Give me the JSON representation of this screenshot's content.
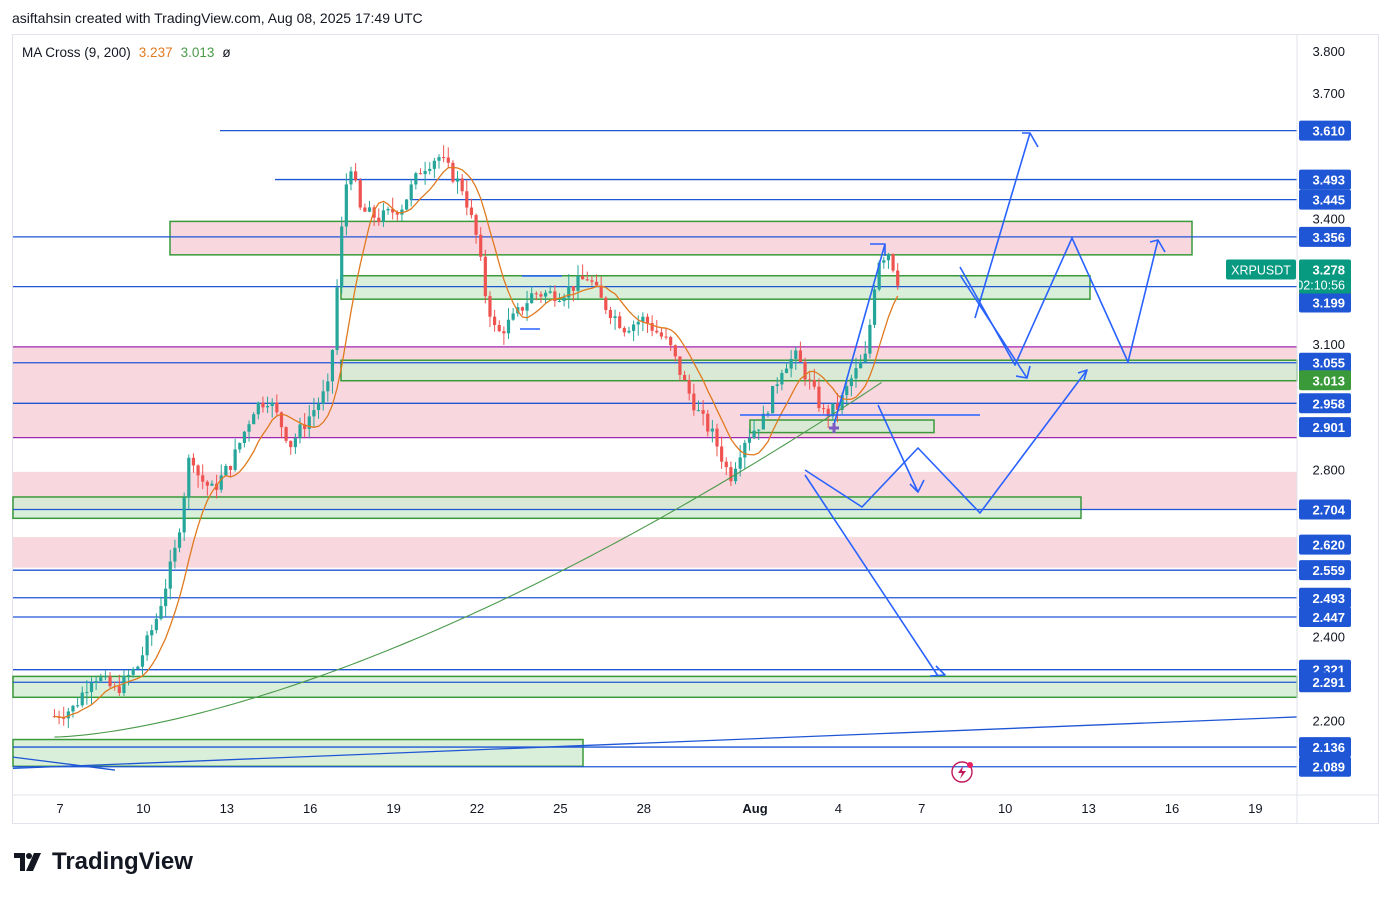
{
  "header": {
    "attribution": "asiftahsin created with TradingView.com, Aug 08, 2025 17:49 UTC"
  },
  "indicator": {
    "name": "MA Cross (9, 200)",
    "ma_fast": "3.237",
    "ma_slow": "3.013",
    "visibility_symbol": "ø",
    "colors": {
      "ma_fast": "#e07a1f",
      "ma_slow": "#4a9a4a"
    }
  },
  "branding": {
    "logo_text": "TradingView"
  },
  "chart_data": {
    "type": "candlestick",
    "symbol": "XRPUSDT",
    "last_price": "3.278",
    "countdown": "02:10:56",
    "ylim": [
      2.05,
      3.84
    ],
    "x_tick_labels": [
      "7",
      "10",
      "13",
      "16",
      "19",
      "22",
      "25",
      "28",
      "Aug",
      "4",
      "7",
      "10",
      "13",
      "16",
      "19"
    ],
    "y_tick_labels": [
      "3.800",
      "3.700",
      "3.400",
      "3.100",
      "2.800",
      "2.400",
      "2.200"
    ],
    "price_tags": [
      {
        "value": "3.610",
        "color": "#1f56d6"
      },
      {
        "value": "3.493",
        "color": "#1f56d6"
      },
      {
        "value": "3.445",
        "color": "#1f56d6"
      },
      {
        "value": "3.356",
        "color": "#1f56d6"
      },
      {
        "value": "3.237",
        "color": "#f26b1d"
      },
      {
        "value": "3.199",
        "color": "#1f56d6"
      },
      {
        "value": "3.055",
        "color": "#1f56d6"
      },
      {
        "value": "3.013",
        "color": "#3a9a3a"
      },
      {
        "value": "2.958",
        "color": "#1f56d6"
      },
      {
        "value": "2.901",
        "color": "#1f56d6"
      },
      {
        "value": "2.704",
        "color": "#1f56d6"
      },
      {
        "value": "2.620",
        "color": "#1f56d6"
      },
      {
        "value": "2.559",
        "color": "#1f56d6"
      },
      {
        "value": "2.493",
        "color": "#1f56d6"
      },
      {
        "value": "2.447",
        "color": "#1f56d6"
      },
      {
        "value": "2.321",
        "color": "#1f56d6"
      },
      {
        "value": "2.291",
        "color": "#1f56d6"
      },
      {
        "value": "2.136",
        "color": "#1f56d6"
      },
      {
        "value": "2.089",
        "color": "#1f56d6"
      }
    ],
    "horizontal_levels": [
      3.61,
      3.493,
      3.445,
      3.356,
      3.237,
      3.055,
      2.958,
      2.704,
      2.559,
      2.493,
      2.447,
      2.321,
      2.291,
      2.136,
      2.089
    ],
    "purple_levels": [
      3.093,
      2.876
    ],
    "pink_zones": [
      [
        3.313,
        3.393
      ],
      [
        2.876,
        3.093
      ],
      [
        2.704,
        2.794
      ],
      [
        2.565,
        2.638
      ]
    ],
    "green_zones": [
      [
        3.207,
        3.263
      ],
      [
        3.012,
        3.061
      ],
      [
        2.683,
        2.734
      ],
      [
        2.888,
        2.918
      ],
      [
        2.255,
        2.305
      ],
      [
        2.09,
        2.154
      ]
    ],
    "colors": {
      "up": "#26a69a",
      "down": "#ef5350",
      "ma_fast": "#e07a1f",
      "ma_slow": "#4a9a4a",
      "level": "#1f56d6",
      "purple": "#9c27b0",
      "pink_zone": "#f8d7de",
      "green_zone": "#d4ecd4"
    }
  }
}
